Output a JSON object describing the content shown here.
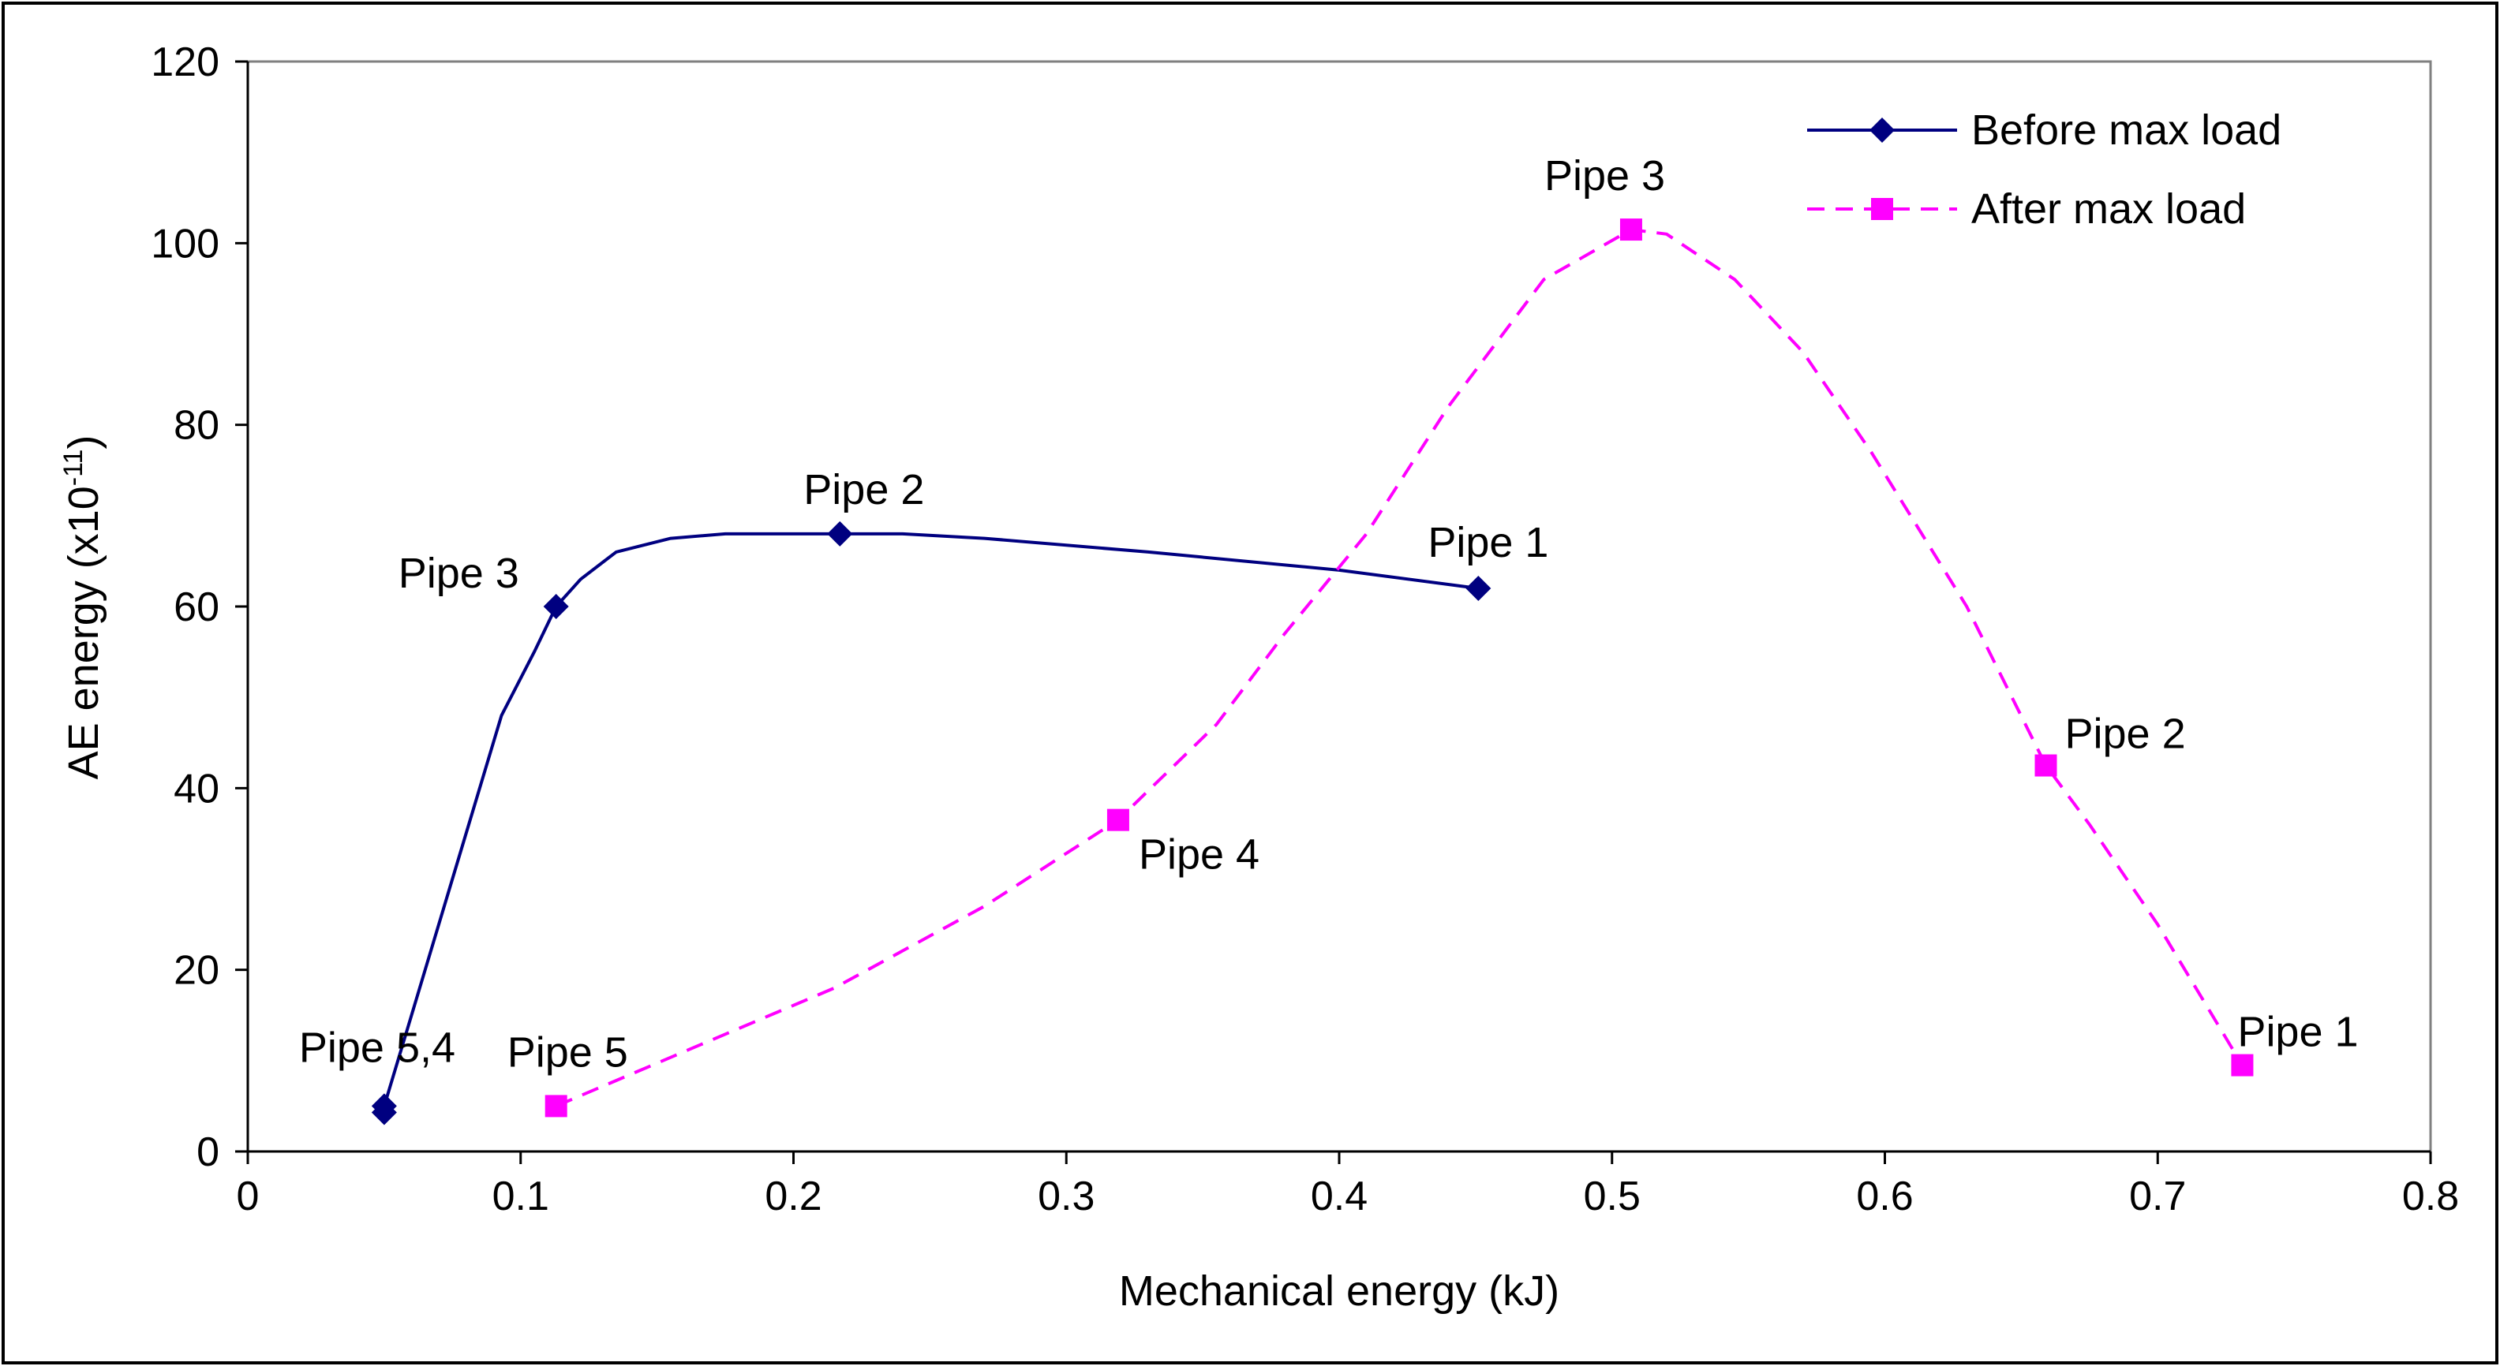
{
  "chart_data": {
    "type": "line",
    "xlabel": "Mechanical energy (kJ)",
    "ylabel": "AE energy (x10",
    "ylabel_exponent": "-11",
    "ylabel_suffix": ")",
    "xlim": [
      0,
      0.8
    ],
    "ylim": [
      0,
      120
    ],
    "x_ticks": [
      "0",
      "0.1",
      "0.2",
      "0.3",
      "0.4",
      "0.5",
      "0.6",
      "0.7",
      "0.8"
    ],
    "y_ticks": [
      "0",
      "20",
      "40",
      "60",
      "80",
      "100",
      "120"
    ],
    "grid": false,
    "legend_position": "top-right",
    "series": [
      {
        "name": "Before max load",
        "color": "#000080",
        "line_style": "solid",
        "marker": "diamond",
        "points": [
          {
            "x": 0.05,
            "y": 4.3,
            "label": ""
          },
          {
            "x": 0.05,
            "y": 5,
            "label": "Pipe 5,4"
          },
          {
            "x": 0.113,
            "y": 60,
            "label": "Pipe 3"
          },
          {
            "x": 0.217,
            "y": 68,
            "label": "Pipe 2"
          },
          {
            "x": 0.451,
            "y": 62,
            "label": "Pipe 1"
          }
        ],
        "curve": [
          [
            0.05,
            4.3
          ],
          [
            0.05,
            5
          ],
          [
            0.055,
            10
          ],
          [
            0.062,
            17
          ],
          [
            0.075,
            30
          ],
          [
            0.093,
            48
          ],
          [
            0.105,
            55
          ],
          [
            0.113,
            60
          ],
          [
            0.122,
            63
          ],
          [
            0.135,
            66
          ],
          [
            0.155,
            67.5
          ],
          [
            0.175,
            68
          ],
          [
            0.217,
            68
          ],
          [
            0.24,
            68
          ],
          [
            0.27,
            67.5
          ],
          [
            0.33,
            66
          ],
          [
            0.4,
            64
          ],
          [
            0.451,
            62
          ]
        ]
      },
      {
        "name": "After max load",
        "color": "#FF00FF",
        "line_style": "dashed",
        "marker": "square",
        "points": [
          {
            "x": 0.113,
            "y": 5,
            "label": "Pipe 5"
          },
          {
            "x": 0.319,
            "y": 36.5,
            "label": "Pipe 4"
          },
          {
            "x": 0.507,
            "y": 101.5,
            "label": "Pipe 3"
          },
          {
            "x": 0.659,
            "y": 42.5,
            "label": "Pipe 2"
          },
          {
            "x": 0.731,
            "y": 9.5,
            "label": "Pipe 1"
          }
        ],
        "curve": [
          [
            0.113,
            5
          ],
          [
            0.16,
            11
          ],
          [
            0.215,
            18
          ],
          [
            0.27,
            27
          ],
          [
            0.319,
            36.5
          ],
          [
            0.355,
            47
          ],
          [
            0.38,
            57
          ],
          [
            0.41,
            68
          ],
          [
            0.44,
            82
          ],
          [
            0.475,
            96
          ],
          [
            0.507,
            101.5
          ],
          [
            0.52,
            101
          ],
          [
            0.545,
            96
          ],
          [
            0.57,
            88
          ],
          [
            0.595,
            77
          ],
          [
            0.63,
            60
          ],
          [
            0.659,
            42.5
          ],
          [
            0.675,
            36
          ],
          [
            0.7,
            25
          ],
          [
            0.731,
            9.5
          ]
        ]
      }
    ]
  }
}
